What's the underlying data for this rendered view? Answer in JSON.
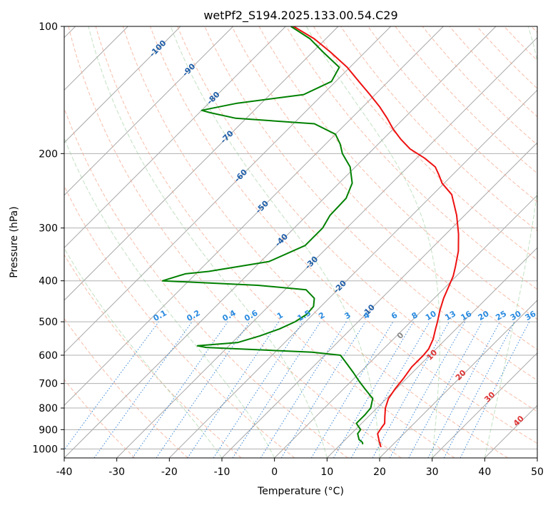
{
  "chart_data": {
    "type": "skew-t",
    "title": "wetPf2_S194.2025.133.00.54.C29",
    "xlabel": "Temperature (°C)",
    "ylabel": "Pressure (hPa)",
    "xlim": [
      -40,
      50
    ],
    "ylim": [
      1050,
      100
    ],
    "y_scale": "log",
    "grid": true,
    "x_ticks": [
      -40,
      -30,
      -20,
      -10,
      0,
      10,
      20,
      30,
      40,
      50
    ],
    "y_ticks": [
      1000,
      900,
      800,
      700,
      600,
      500,
      400,
      300,
      200,
      100
    ],
    "isotherm_labels": [
      -100,
      -90,
      -80,
      -70,
      -60,
      -50,
      -40,
      -30,
      -20,
      -10
    ],
    "mixing_ratio_labels": [
      "0.1",
      "0.2",
      "0.4",
      "0.6",
      "1",
      "1.5",
      "2",
      "3",
      "4",
      "6",
      "8",
      "10",
      "13",
      "16",
      "20",
      "25",
      "30",
      "36"
    ],
    "dry_adiabat_labels": [
      "0",
      "10",
      "20",
      "30",
      "40"
    ],
    "series": [
      {
        "name": "temperature",
        "color": "#ee1111",
        "points": [
          [
            990,
            18.2
          ],
          [
            960,
            16.8
          ],
          [
            920,
            15.0
          ],
          [
            890,
            14.6
          ],
          [
            870,
            14.4
          ],
          [
            840,
            13.2
          ],
          [
            800,
            11.6
          ],
          [
            760,
            10.4
          ],
          [
            720,
            9.8
          ],
          [
            680,
            9.4
          ],
          [
            640,
            8.8
          ],
          [
            600,
            8.8
          ],
          [
            580,
            8.6
          ],
          [
            550,
            7.6
          ],
          [
            520,
            6.1
          ],
          [
            500,
            5.1
          ],
          [
            470,
            3.4
          ],
          [
            440,
            1.8
          ],
          [
            410,
            0.4
          ],
          [
            390,
            -0.6
          ],
          [
            370,
            -2.0
          ],
          [
            340,
            -4.4
          ],
          [
            310,
            -7.6
          ],
          [
            280,
            -11.5
          ],
          [
            250,
            -16.4
          ],
          [
            235,
            -20.4
          ],
          [
            225,
            -22.5
          ],
          [
            215,
            -24.8
          ],
          [
            205,
            -28.5
          ],
          [
            195,
            -33.0
          ],
          [
            185,
            -36.6
          ],
          [
            175,
            -40.0
          ],
          [
            165,
            -43.2
          ],
          [
            155,
            -46.8
          ],
          [
            145,
            -51.0
          ],
          [
            135,
            -55.6
          ],
          [
            125,
            -60.5
          ],
          [
            115,
            -66.6
          ],
          [
            107,
            -72.2
          ],
          [
            100,
            -78.5
          ]
        ]
      },
      {
        "name": "dewpoint",
        "color": "#008000",
        "points": [
          [
            975,
            14.2
          ],
          [
            965,
            13.8
          ],
          [
            950,
            12.6
          ],
          [
            920,
            11.2
          ],
          [
            900,
            11.0
          ],
          [
            870,
            9.0
          ],
          [
            830,
            9.0
          ],
          [
            800,
            8.8
          ],
          [
            760,
            7.4
          ],
          [
            720,
            4.0
          ],
          [
            690,
            1.4
          ],
          [
            660,
            -1.2
          ],
          [
            630,
            -4.0
          ],
          [
            600,
            -7.0
          ],
          [
            590,
            -13.0
          ],
          [
            575,
            -34.0
          ],
          [
            570,
            -36.0
          ],
          [
            560,
            -29.0
          ],
          [
            540,
            -26.0
          ],
          [
            520,
            -23.6
          ],
          [
            500,
            -22.0
          ],
          [
            480,
            -21.2
          ],
          [
            460,
            -21.4
          ],
          [
            440,
            -22.8
          ],
          [
            420,
            -26.0
          ],
          [
            410,
            -36.0
          ],
          [
            400,
            -55.0
          ],
          [
            385,
            -52.0
          ],
          [
            380,
            -48.0
          ],
          [
            360,
            -38.4
          ],
          [
            330,
            -34.6
          ],
          [
            300,
            -34.6
          ],
          [
            280,
            -35.6
          ],
          [
            255,
            -35.8
          ],
          [
            235,
            -37.5
          ],
          [
            215,
            -41.0
          ],
          [
            200,
            -45.0
          ],
          [
            190,
            -47.2
          ],
          [
            180,
            -50.0
          ],
          [
            170,
            -56.0
          ],
          [
            165,
            -72.0
          ],
          [
            160,
            -78.0
          ],
          [
            158,
            -80.0
          ],
          [
            152,
            -74.6
          ],
          [
            145,
            -63.6
          ],
          [
            135,
            -60.8
          ],
          [
            125,
            -62.0
          ],
          [
            115,
            -68.0
          ],
          [
            107,
            -73.0
          ],
          [
            100,
            -79.0
          ]
        ]
      }
    ]
  }
}
